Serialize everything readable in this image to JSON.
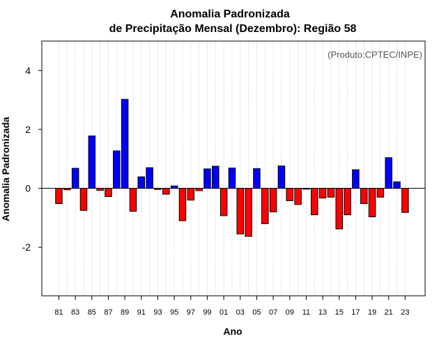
{
  "chart_data": {
    "type": "bar",
    "title_line1": "Anomalia Padronizada",
    "title_line2": "de Precipitação Mensal (Dezembro): Região 58",
    "xlabel": "Ano",
    "ylabel": "Anomalia Padronizada",
    "credit": "(Produto:CPTEC/INPE)",
    "ylim": [
      -3.65,
      5.0
    ],
    "yticks": [
      -2,
      0,
      2,
      4
    ],
    "ytick_labels": [
      "-2",
      "0",
      "2",
      "4"
    ],
    "positive_color": "#0000ff",
    "negative_color": "#ff0000",
    "x_tick_labels": [
      "81",
      "83",
      "85",
      "87",
      "89",
      "91",
      "93",
      "95",
      "97",
      "99",
      "01",
      "03",
      "05",
      "07",
      "09",
      "11",
      "13",
      "15",
      "17",
      "19",
      "21",
      "23"
    ],
    "categories": [
      "1981",
      "1982",
      "1983",
      "1984",
      "1985",
      "1986",
      "1987",
      "1988",
      "1989",
      "1990",
      "1991",
      "1992",
      "1993",
      "1994",
      "1995",
      "1996",
      "1997",
      "1998",
      "1999",
      "2000",
      "2001",
      "2002",
      "2003",
      "2004",
      "2005",
      "2006",
      "2007",
      "2008",
      "2009",
      "2010",
      "2011",
      "2012",
      "2013",
      "2014",
      "2015",
      "2016",
      "2017",
      "2018",
      "2019",
      "2020",
      "2021",
      "2022",
      "2023"
    ],
    "values": [
      -0.52,
      -0.05,
      0.68,
      -0.75,
      1.78,
      -0.07,
      -0.28,
      1.27,
      3.02,
      -0.78,
      0.39,
      0.7,
      -0.04,
      -0.2,
      0.08,
      -1.1,
      -0.4,
      -0.08,
      0.66,
      0.75,
      -0.93,
      0.69,
      -1.55,
      -1.63,
      0.67,
      -1.2,
      -0.8,
      0.76,
      -0.42,
      -0.55,
      -0.03,
      -0.9,
      -0.33,
      -0.3,
      -1.38,
      -0.9,
      0.63,
      -0.52,
      -0.97,
      -0.3,
      1.04,
      0.22,
      -0.82
    ]
  }
}
